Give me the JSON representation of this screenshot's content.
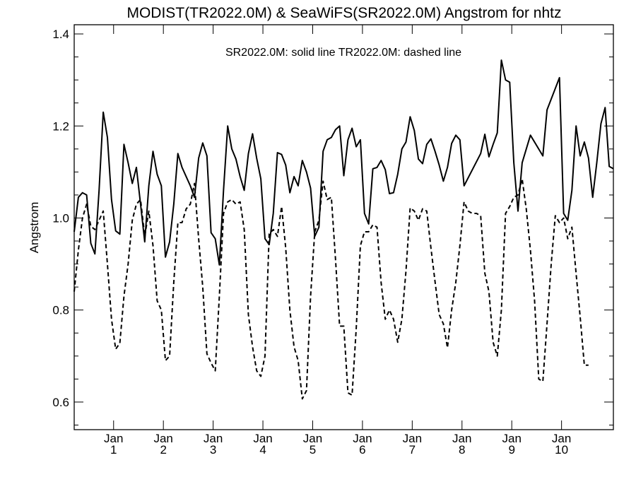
{
  "chart_data": {
    "type": "line",
    "title": "MODIST(TR2022.0M) & SeaWiFS(SR2022.0M)  Angstrom for nhtz",
    "annotation": "SR2022.0M: solid line   TR2022.0M: dashed line",
    "ylabel": "Angstrom",
    "xlabel": "",
    "xlim": [
      0,
      130
    ],
    "ylim": [
      0.54,
      1.42
    ],
    "y_ticks": [
      0.6,
      0.8,
      1.0,
      1.2,
      1.4
    ],
    "y_tick_labels": [
      "0.6",
      "0.8",
      "1.0",
      "1.2",
      "1.4"
    ],
    "y_minor_step": 0.05,
    "x_ticks": [
      {
        "x": 9.5,
        "line1": "Jan",
        "line2": "1"
      },
      {
        "x": 21.5,
        "line1": "Jan",
        "line2": "2"
      },
      {
        "x": 33.5,
        "line1": "Jan",
        "line2": "3"
      },
      {
        "x": 45.5,
        "line1": "Jan",
        "line2": "4"
      },
      {
        "x": 57.5,
        "line1": "Jan",
        "line2": "5"
      },
      {
        "x": 69.5,
        "line1": "Jan",
        "line2": "6"
      },
      {
        "x": 81.5,
        "line1": "Jan",
        "line2": "7"
      },
      {
        "x": 93.5,
        "line1": "Jan",
        "line2": "8"
      },
      {
        "x": 105.5,
        "line1": "Jan",
        "line2": "9"
      },
      {
        "x": 117.5,
        "line1": "Jan",
        "line2": "10"
      }
    ],
    "grid": false,
    "series": [
      {
        "name": "SR2022.0M",
        "style": "solid",
        "color": "#000000",
        "points": [
          [
            0,
            0.97
          ],
          [
            1,
            1.045
          ],
          [
            2,
            1.055
          ],
          [
            3,
            1.05
          ],
          [
            4,
            0.945
          ],
          [
            5,
            0.922
          ],
          [
            6,
            1.06
          ],
          [
            7,
            1.23
          ],
          [
            8,
            1.175
          ],
          [
            9,
            1.04
          ],
          [
            10,
            0.972
          ],
          [
            11,
            0.965
          ],
          [
            12,
            1.16
          ],
          [
            13,
            1.12
          ],
          [
            14,
            1.075
          ],
          [
            15,
            1.11
          ],
          [
            16,
            1.03
          ],
          [
            17,
            0.948
          ],
          [
            18,
            1.07
          ],
          [
            19,
            1.145
          ],
          [
            20,
            1.095
          ],
          [
            21,
            1.07
          ],
          [
            22,
            0.915
          ],
          [
            23,
            0.948
          ],
          [
            24,
            1.03
          ],
          [
            25,
            1.14
          ],
          [
            26,
            1.11
          ],
          [
            28,
            1.07
          ],
          [
            29,
            1.045
          ],
          [
            30,
            1.13
          ],
          [
            31,
            1.163
          ],
          [
            32,
            1.135
          ],
          [
            33,
            0.968
          ],
          [
            34,
            0.955
          ],
          [
            35,
            0.898
          ],
          [
            36,
            1.06
          ],
          [
            37,
            1.2
          ],
          [
            38,
            1.15
          ],
          [
            39,
            1.128
          ],
          [
            40,
            1.09
          ],
          [
            41,
            1.06
          ],
          [
            42,
            1.14
          ],
          [
            43,
            1.183
          ],
          [
            44,
            1.13
          ],
          [
            45,
            1.085
          ],
          [
            46,
            0.955
          ],
          [
            47,
            0.942
          ],
          [
            48,
            1.01
          ],
          [
            49,
            1.142
          ],
          [
            50,
            1.138
          ],
          [
            51,
            1.115
          ],
          [
            52,
            1.055
          ],
          [
            53,
            1.09
          ],
          [
            54,
            1.07
          ],
          [
            55,
            1.125
          ],
          [
            56,
            1.1
          ],
          [
            57,
            1.065
          ],
          [
            58,
            0.96
          ],
          [
            59,
            0.98
          ],
          [
            60,
            1.145
          ],
          [
            61,
            1.17
          ],
          [
            62,
            1.175
          ],
          [
            63,
            1.192
          ],
          [
            64,
            1.2
          ],
          [
            65,
            1.092
          ],
          [
            66,
            1.17
          ],
          [
            67,
            1.195
          ],
          [
            68,
            1.155
          ],
          [
            69,
            1.17
          ],
          [
            70,
            1.01
          ],
          [
            71,
            0.987
          ],
          [
            72,
            1.107
          ],
          [
            73,
            1.11
          ],
          [
            74,
            1.125
          ],
          [
            75,
            1.105
          ],
          [
            76,
            1.053
          ],
          [
            77,
            1.055
          ],
          [
            78,
            1.095
          ],
          [
            79,
            1.15
          ],
          [
            80,
            1.165
          ],
          [
            81,
            1.22
          ],
          [
            82,
            1.19
          ],
          [
            83,
            1.128
          ],
          [
            84,
            1.118
          ],
          [
            85,
            1.16
          ],
          [
            86,
            1.172
          ],
          [
            87,
            1.145
          ],
          [
            88,
            1.115
          ],
          [
            89,
            1.08
          ],
          [
            90,
            1.11
          ],
          [
            91,
            1.162
          ],
          [
            92,
            1.18
          ],
          [
            93,
            1.17
          ],
          [
            94,
            1.07
          ],
          [
            98,
            1.14
          ],
          [
            99,
            1.182
          ],
          [
            100,
            1.133
          ],
          [
            101,
            1.16
          ],
          [
            102,
            1.185
          ],
          [
            103,
            1.343
          ],
          [
            104,
            1.3
          ],
          [
            105,
            1.295
          ],
          [
            106,
            1.12
          ],
          [
            107,
            1.015
          ],
          [
            108,
            1.12
          ],
          [
            110,
            1.18
          ],
          [
            113,
            1.135
          ],
          [
            114,
            1.235
          ],
          [
            117,
            1.305
          ],
          [
            118,
            1.01
          ],
          [
            119,
            0.995
          ],
          [
            120,
            1.06
          ],
          [
            121,
            1.2
          ],
          [
            122,
            1.135
          ],
          [
            123,
            1.165
          ],
          [
            124,
            1.13
          ],
          [
            125,
            1.045
          ],
          [
            126,
            1.12
          ],
          [
            127,
            1.205
          ],
          [
            128,
            1.24
          ],
          [
            129,
            1.112
          ],
          [
            130,
            1.107
          ]
        ]
      },
      {
        "name": "TR2022.0M",
        "style": "dashed",
        "color": "#000000",
        "points": [
          [
            0,
            0.84
          ],
          [
            1,
            0.93
          ],
          [
            2,
            1.0
          ],
          [
            3,
            1.03
          ],
          [
            4,
            0.982
          ],
          [
            5,
            0.975
          ],
          [
            6,
            0.995
          ],
          [
            7,
            1.015
          ],
          [
            8,
            0.9
          ],
          [
            9,
            0.78
          ],
          [
            10,
            0.715
          ],
          [
            11,
            0.728
          ],
          [
            12,
            0.83
          ],
          [
            13,
            0.9
          ],
          [
            14,
            0.995
          ],
          [
            15,
            1.03
          ],
          [
            16,
            1.04
          ],
          [
            17,
            0.96
          ],
          [
            18,
            1.015
          ],
          [
            19,
            0.94
          ],
          [
            20,
            0.82
          ],
          [
            21,
            0.8
          ],
          [
            22,
            0.69
          ],
          [
            23,
            0.7
          ],
          [
            24,
            0.86
          ],
          [
            25,
            0.99
          ],
          [
            26,
            0.99
          ],
          [
            27,
            1.02
          ],
          [
            28,
            1.03
          ],
          [
            29,
            1.075
          ],
          [
            30,
            0.955
          ],
          [
            31,
            0.85
          ],
          [
            32,
            0.705
          ],
          [
            33,
            0.685
          ],
          [
            34,
            0.668
          ],
          [
            35,
            0.83
          ],
          [
            36,
            1.01
          ],
          [
            37,
            1.035
          ],
          [
            38,
            1.04
          ],
          [
            39,
            1.03
          ],
          [
            40,
            1.035
          ],
          [
            41,
            0.975
          ],
          [
            42,
            0.79
          ],
          [
            43,
            0.72
          ],
          [
            44,
            0.668
          ],
          [
            45,
            0.656
          ],
          [
            46,
            0.7
          ],
          [
            47,
            0.965
          ],
          [
            48,
            0.975
          ],
          [
            49,
            0.96
          ],
          [
            50,
            1.025
          ],
          [
            51,
            0.935
          ],
          [
            52,
            0.8
          ],
          [
            53,
            0.72
          ],
          [
            54,
            0.69
          ],
          [
            55,
            0.607
          ],
          [
            56,
            0.625
          ],
          [
            57,
            0.83
          ],
          [
            58,
            0.97
          ],
          [
            59,
            0.995
          ],
          [
            60,
            1.08
          ],
          [
            61,
            1.04
          ],
          [
            62,
            1.045
          ],
          [
            63,
            0.91
          ],
          [
            64,
            0.765
          ],
          [
            65,
            0.765
          ],
          [
            66,
            0.62
          ],
          [
            67,
            0.615
          ],
          [
            68,
            0.76
          ],
          [
            69,
            0.94
          ],
          [
            70,
            0.97
          ],
          [
            71,
            0.97
          ],
          [
            72,
            0.985
          ],
          [
            73,
            0.98
          ],
          [
            74,
            0.86
          ],
          [
            75,
            0.78
          ],
          [
            76,
            0.8
          ],
          [
            77,
            0.78
          ],
          [
            78,
            0.73
          ],
          [
            79,
            0.78
          ],
          [
            80,
            0.885
          ],
          [
            81,
            1.022
          ],
          [
            82,
            1.015
          ],
          [
            83,
            0.995
          ],
          [
            84,
            1.02
          ],
          [
            85,
            1.015
          ],
          [
            86,
            0.935
          ],
          [
            87,
            0.862
          ],
          [
            88,
            0.79
          ],
          [
            89,
            0.77
          ],
          [
            90,
            0.718
          ],
          [
            91,
            0.8
          ],
          [
            92,
            0.86
          ],
          [
            93,
            0.94
          ],
          [
            94,
            1.035
          ],
          [
            95,
            1.015
          ],
          [
            96,
            1.01
          ],
          [
            97,
            1.01
          ],
          [
            98,
            1.005
          ],
          [
            99,
            0.88
          ],
          [
            100,
            0.84
          ],
          [
            101,
            0.73
          ],
          [
            102,
            0.7
          ],
          [
            103,
            0.8
          ],
          [
            104,
            1.01
          ],
          [
            105,
            1.025
          ],
          [
            106,
            1.045
          ],
          [
            107,
            1.05
          ],
          [
            108,
            1.085
          ],
          [
            109,
            1.02
          ],
          [
            110,
            0.93
          ],
          [
            111,
            0.82
          ],
          [
            112,
            0.65
          ],
          [
            113,
            0.645
          ],
          [
            114,
            0.77
          ],
          [
            115,
            0.9
          ],
          [
            116,
            1.005
          ],
          [
            117,
            0.99
          ],
          [
            118,
            1.0
          ],
          [
            119,
            0.955
          ],
          [
            120,
            0.98
          ],
          [
            121,
            0.88
          ],
          [
            122,
            0.785
          ],
          [
            123,
            0.68
          ],
          [
            124,
            0.68
          ]
        ]
      }
    ]
  }
}
